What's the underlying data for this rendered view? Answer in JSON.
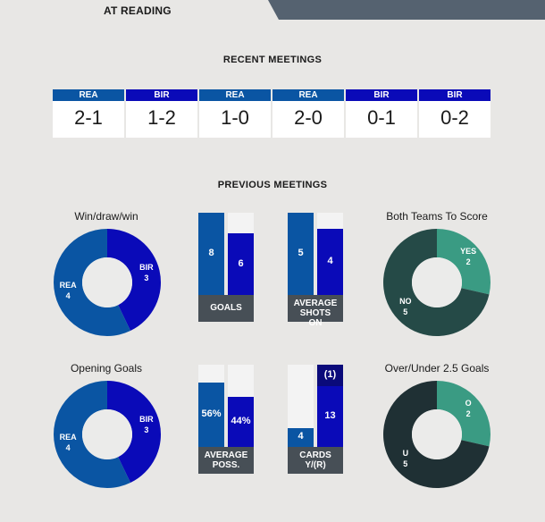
{
  "venue": {
    "label": "AT READING"
  },
  "colors": {
    "rea": "#0a55a3",
    "bir": "#0a0ab8",
    "bir_dark": "#0a0a7a",
    "track": "#f3f3f3",
    "caption": "#474f56",
    "teal": "#3a9b83",
    "dark_green": "#254a47",
    "charcoal": "#1f3034",
    "slate": "#556270"
  },
  "recent": {
    "title": "RECENT MEETINGS",
    "matches": [
      {
        "team": "REA",
        "score": "2-1"
      },
      {
        "team": "BIR",
        "score": "1-2"
      },
      {
        "team": "REA",
        "score": "1-0"
      },
      {
        "team": "REA",
        "score": "2-0"
      },
      {
        "team": "BIR",
        "score": "0-1"
      },
      {
        "team": "BIR",
        "score": "0-2"
      }
    ]
  },
  "previous": {
    "title": "PREVIOUS MEETINGS",
    "win_draw_win": {
      "title": "Win/draw/win",
      "rea_label": "REA",
      "rea_value": 4,
      "bir_label": "BIR",
      "bir_value": 3
    },
    "goals": {
      "caption": "GOALS",
      "rea": 8,
      "bir": 6
    },
    "shots": {
      "caption": "AVERAGE SHOTS ON",
      "rea": 5,
      "bir": 4
    },
    "btts": {
      "title": "Both Teams To Score",
      "yes_label": "YES",
      "yes_value": 2,
      "no_label": "NO",
      "no_value": 5
    },
    "opening_goals": {
      "title": "Opening Goals",
      "rea_label": "REA",
      "rea_value": 4,
      "bir_label": "BIR",
      "bir_value": 3
    },
    "possession": {
      "caption": "AVERAGE POSS.",
      "rea": "56%",
      "bir": "44%",
      "rea_value": 56,
      "bir_value": 44
    },
    "cards": {
      "caption": "CARDS Y/(R)",
      "rea": "4",
      "bir": "13",
      "bir_red": "(1)",
      "rea_value": 4,
      "bir_value": 13,
      "bir_red_value": 1
    },
    "over_under": {
      "title": "Over/Under 2.5 Goals",
      "o_label": "O",
      "o_value": 2,
      "u_label": "U",
      "u_value": 5
    }
  }
}
